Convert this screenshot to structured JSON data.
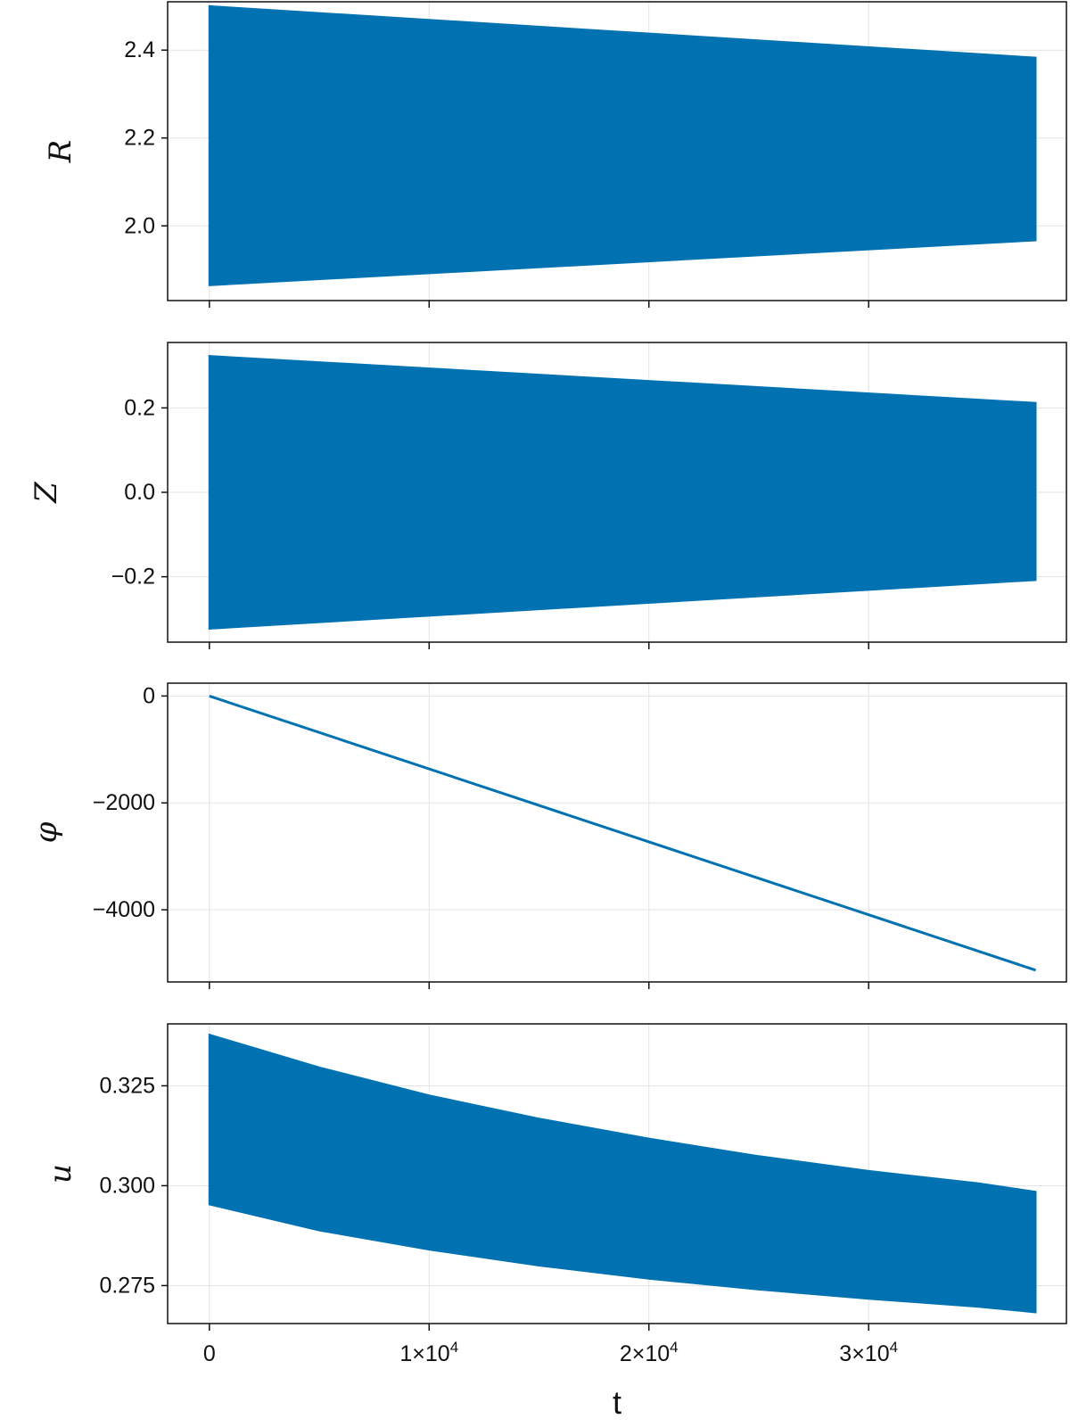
{
  "chart_data": [
    {
      "type": "area",
      "ylabel": "R",
      "ylim": [
        1.83,
        2.51
      ],
      "xlim": [
        -1900,
        39000
      ],
      "yticks": [
        2.0,
        2.2,
        2.4
      ],
      "ytick_labels": [
        "2.0",
        "2.2",
        "2.4"
      ],
      "series": [
        {
          "color": "#0072b2",
          "t": [
            0,
            37600
          ],
          "upper": [
            2.5,
            2.383
          ],
          "lower": [
            1.865,
            1.967
          ]
        }
      ]
    },
    {
      "type": "area",
      "ylabel": "Z",
      "ylim": [
        -0.355,
        0.355
      ],
      "xlim": [
        -1900,
        39000
      ],
      "yticks": [
        -0.2,
        0.0,
        0.2
      ],
      "ytick_labels": [
        "−0.2",
        "0.0",
        "0.2"
      ],
      "series": [
        {
          "color": "#0072b2",
          "t": [
            0,
            37600
          ],
          "upper": [
            0.323,
            0.212
          ],
          "lower": [
            -0.323,
            -0.208
          ]
        }
      ]
    },
    {
      "type": "line",
      "ylabel": "φ",
      "ylim": [
        -5350,
        240
      ],
      "xlim": [
        -1900,
        39000
      ],
      "yticks": [
        -4000,
        -2000,
        0
      ],
      "ytick_labels": [
        "−4000",
        "−2000",
        "0"
      ],
      "series": [
        {
          "color": "#0072b2",
          "t": [
            0,
            37600
          ],
          "y": [
            0,
            -5130
          ]
        }
      ]
    },
    {
      "type": "area",
      "ylabel": "u",
      "ylim": [
        0.2655,
        0.3405
      ],
      "xlim": [
        -1900,
        39000
      ],
      "yticks": [
        0.275,
        0.3,
        0.325
      ],
      "ytick_labels": [
        "0.275",
        "0.300",
        "0.325"
      ],
      "series": [
        {
          "color": "#0072b2",
          "t": [
            0,
            5000,
            10000,
            15000,
            20000,
            25000,
            30000,
            35000,
            37600
          ],
          "upper": [
            0.3378,
            0.3296,
            0.3226,
            0.3168,
            0.3118,
            0.3074,
            0.3037,
            0.3006,
            0.2985
          ],
          "lower": [
            0.2953,
            0.2888,
            0.284,
            0.28,
            0.2767,
            0.274,
            0.2717,
            0.2697,
            0.2683
          ]
        }
      ]
    }
  ],
  "xaxis": {
    "label": "t",
    "ticks": [
      0,
      10000,
      20000,
      30000
    ],
    "tick_labels": [
      {
        "base": "0",
        "exp": ""
      },
      {
        "base": "1×10",
        "exp": "4"
      },
      {
        "base": "2×10",
        "exp": "4"
      },
      {
        "base": "3×10",
        "exp": "4"
      }
    ]
  }
}
